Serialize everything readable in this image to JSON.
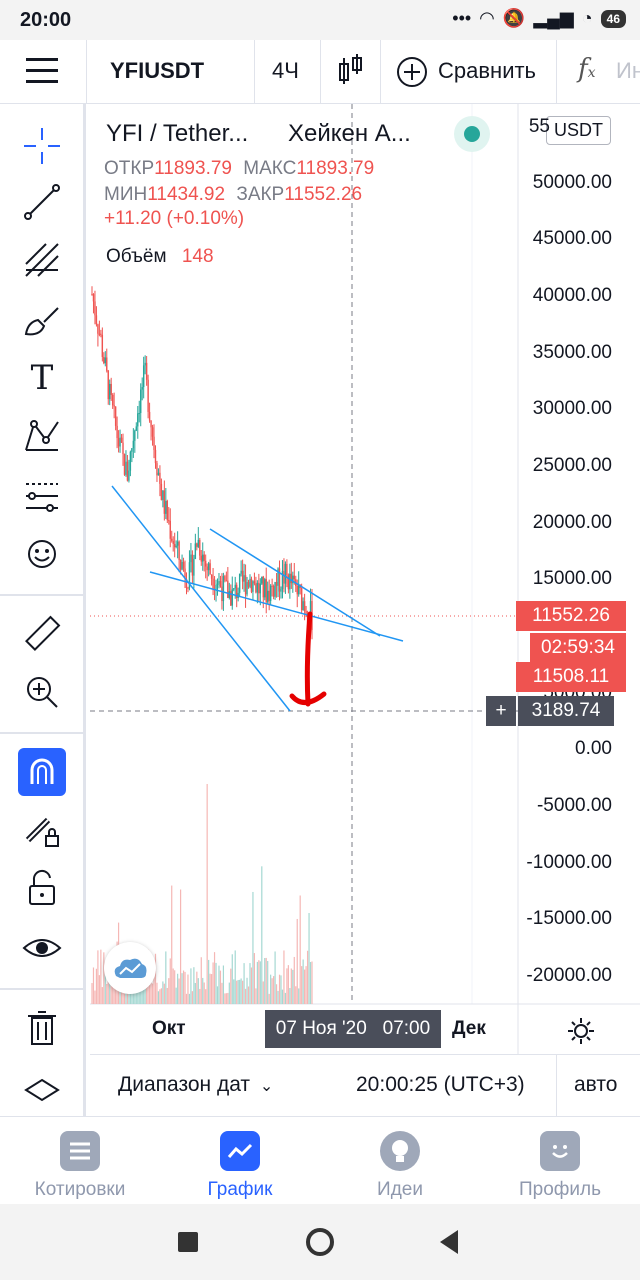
{
  "status": {
    "time": "20:00",
    "battery": "46"
  },
  "toolbar": {
    "symbol": "YFIUSDT",
    "interval": "4Ч",
    "compare": "Сравнить",
    "indicators_hint": "Ин"
  },
  "legend": {
    "title": "YFI / Tether...",
    "chart_style": "Хейкен А...",
    "o_label": "ОТКР",
    "o_value": "11893.79",
    "h_label": "МАКС",
    "h_value": "11893.79",
    "l_label": "МИН",
    "l_value": "11434.92",
    "c_label": "ЗАКР",
    "c_value": "11552.26",
    "change": "+11.20 (+0.10%)",
    "volume_label": "Объём",
    "volume_value": "148"
  },
  "currency_badge": "USDT",
  "price_scale": [
    "55",
    "50000.00",
    "45000.00",
    "40000.00",
    "35000.00",
    "30000.00",
    "25000.00",
    "20000.00",
    "15000.00",
    "5000.00",
    "0.00",
    "-5000.00",
    "-10000.00",
    "-15000.00",
    "-20000.00"
  ],
  "tags": {
    "last_price": "11552.26",
    "countdown": "02:59:34",
    "price2": "11508.11",
    "crosshair_price": "3189.74"
  },
  "time_axis": {
    "oct": "Окт",
    "crosshair_time": "07 Ноя '20   07:00",
    "dec": "Дек"
  },
  "bottom_bar": {
    "date_range": "Диапазон дат",
    "clock": "20:00:25 (UTC+3)",
    "auto": "авто"
  },
  "nav": {
    "quotes": "Котировки",
    "chart": "График",
    "ideas": "Идеи",
    "profile": "Профиль"
  },
  "colors": {
    "accent": "#2962ff",
    "down": "#ef5350",
    "up": "#26a69a",
    "trendline": "#2196f3"
  },
  "chart_data": {
    "type": "candlestick",
    "symbol": "YFIUSDT",
    "interval": "4H",
    "ohlc_last": {
      "open": 11893.79,
      "high": 11893.79,
      "low": 11434.92,
      "close": 11552.26
    },
    "approx_close_path": [
      40000,
      36000,
      31000,
      27000,
      24000,
      29000,
      33000,
      27000,
      22000,
      19000,
      16500,
      15000,
      18500,
      16000,
      15000,
      14000,
      13500,
      14500,
      15000,
      14000,
      13800,
      14600,
      15200,
      14200,
      13000,
      11552
    ],
    "yrange": [
      -22000,
      56000
    ]
  }
}
